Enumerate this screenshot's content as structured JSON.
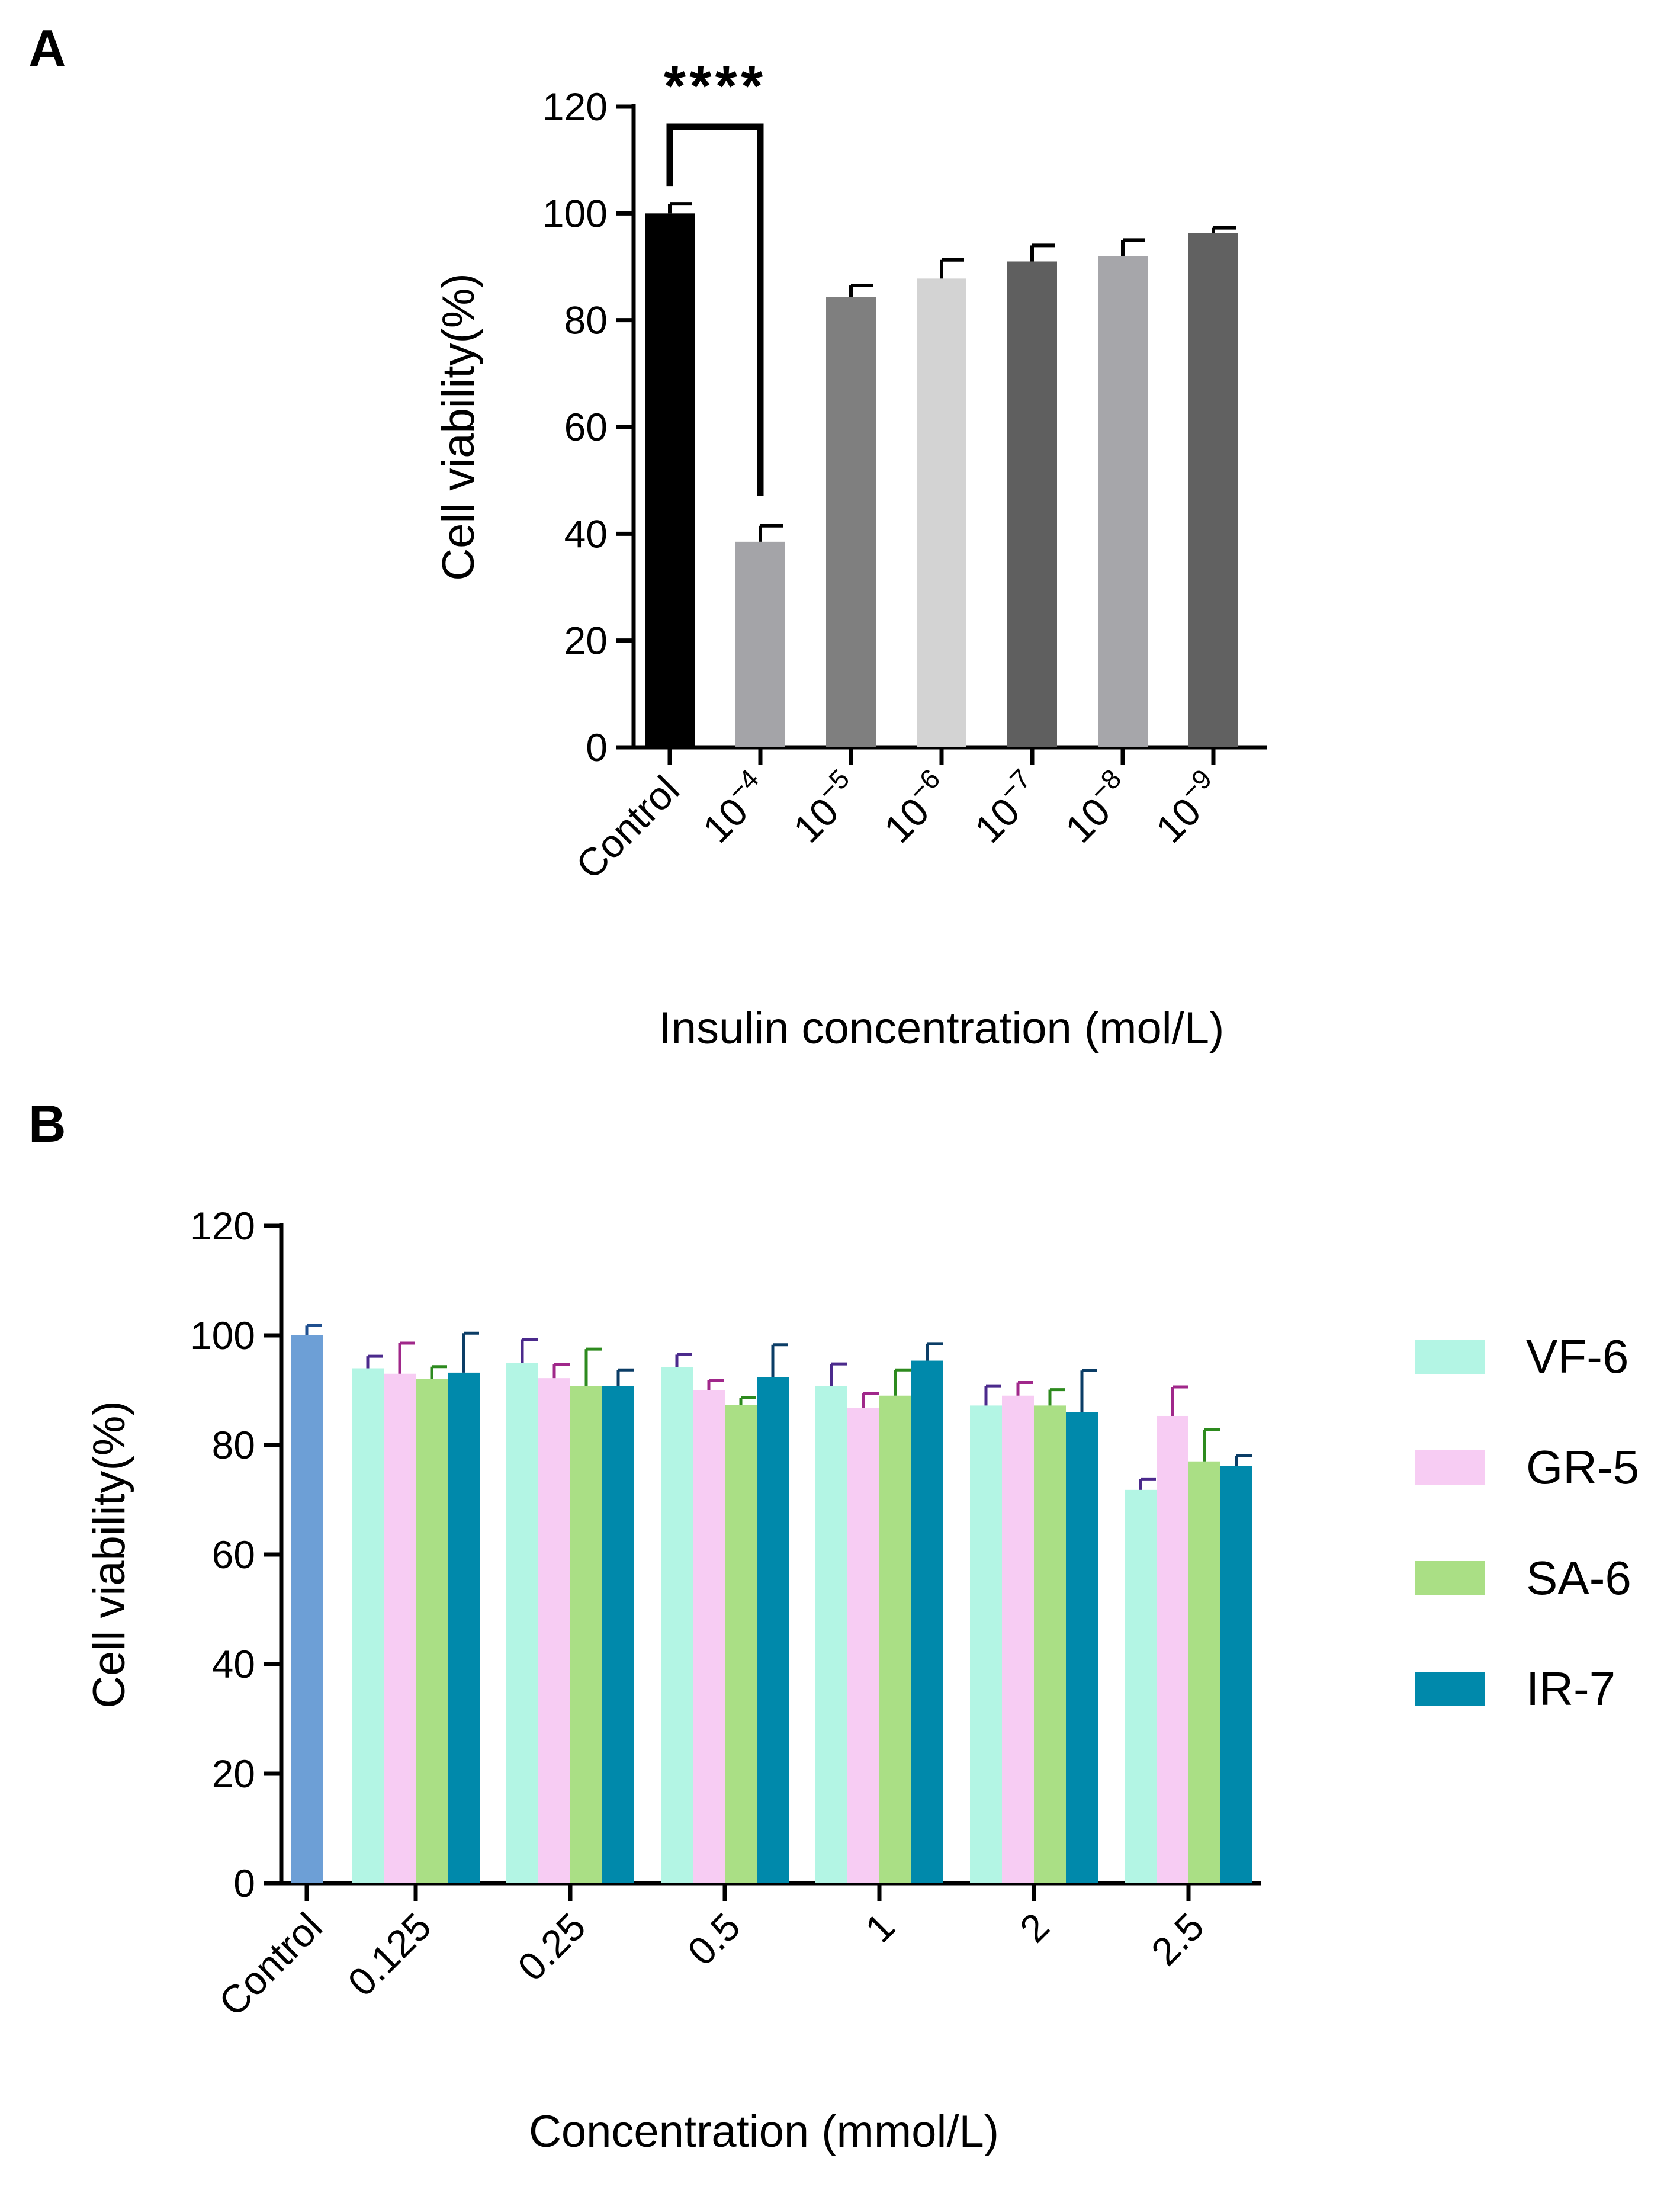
{
  "figure": {
    "panel_a_label": "A",
    "panel_b_label": "B"
  },
  "chart_data": [
    {
      "type": "bar",
      "panel": "A",
      "title": "",
      "xlabel": "Insulin concentration (mol/L)",
      "ylabel": "Cell viability(%)",
      "ylim": [
        0,
        120
      ],
      "yticks": [
        "0",
        "20",
        "40",
        "60",
        "80",
        "100",
        "120"
      ],
      "categories": [
        {
          "base": "",
          "exp": "",
          "text": "Control"
        },
        {
          "base": "10",
          "exp": "−4",
          "text": ""
        },
        {
          "base": "10",
          "exp": "−5",
          "text": ""
        },
        {
          "base": "10",
          "exp": "−6",
          "text": ""
        },
        {
          "base": "10",
          "exp": "−7",
          "text": ""
        },
        {
          "base": "10",
          "exp": "−8",
          "text": ""
        },
        {
          "base": "10",
          "exp": "−9",
          "text": ""
        }
      ],
      "values": [
        100,
        38.5,
        84.3,
        87.8,
        91.0,
        92.0,
        96.3
      ],
      "errors": [
        1.8,
        3.0,
        2.2,
        3.5,
        3.0,
        3.0,
        1.0
      ],
      "colors": [
        "#000000",
        "#a4a4a8",
        "#7f7f7f",
        "#d3d3d3",
        "#5f5f5f",
        "#a6a6aa",
        "#616161"
      ],
      "annotation": {
        "text": "****",
        "from_index": 0,
        "to_index": 1
      }
    },
    {
      "type": "bar",
      "panel": "B",
      "title": "",
      "xlabel": "Concentration (mmol/L)",
      "ylabel": "Cell viability(%)",
      "ylim": [
        0,
        120
      ],
      "yticks": [
        "0",
        "20",
        "40",
        "60",
        "80",
        "100",
        "120"
      ],
      "control": {
        "label": "Control",
        "value": 100,
        "error": 1.8,
        "color": "#6d9fd6",
        "error_color": "#1f4f8f"
      },
      "categories": [
        "0.125",
        "0.25",
        "0.5",
        "1",
        "2",
        "2.5"
      ],
      "series": [
        {
          "name": "VF-6",
          "color": "#b3f5e4",
          "error_color": "#4b2a8c",
          "values": [
            94.0,
            95.0,
            94.2,
            90.8,
            87.2,
            71.8
          ],
          "errors": [
            2.2,
            4.3,
            2.3,
            4.0,
            3.6,
            2.0
          ]
        },
        {
          "name": "GR-5",
          "color": "#f7ccf3",
          "error_color": "#a0288a",
          "values": [
            93.0,
            92.2,
            90.0,
            86.8,
            89.0,
            85.3
          ],
          "errors": [
            5.6,
            2.5,
            1.8,
            2.6,
            2.4,
            5.3
          ]
        },
        {
          "name": "SA-6",
          "color": "#aadf85",
          "error_color": "#2d8a1e",
          "values": [
            92.0,
            90.8,
            87.3,
            89.0,
            87.2,
            77.0
          ],
          "errors": [
            2.3,
            6.7,
            1.3,
            4.7,
            2.9,
            5.8
          ]
        },
        {
          "name": "IR-7",
          "color": "#0089ab",
          "error_color": "#0b3d66",
          "values": [
            93.2,
            90.8,
            92.4,
            95.4,
            86.0,
            76.2
          ],
          "errors": [
            7.2,
            2.9,
            5.9,
            3.1,
            7.6,
            1.8
          ]
        }
      ]
    }
  ]
}
